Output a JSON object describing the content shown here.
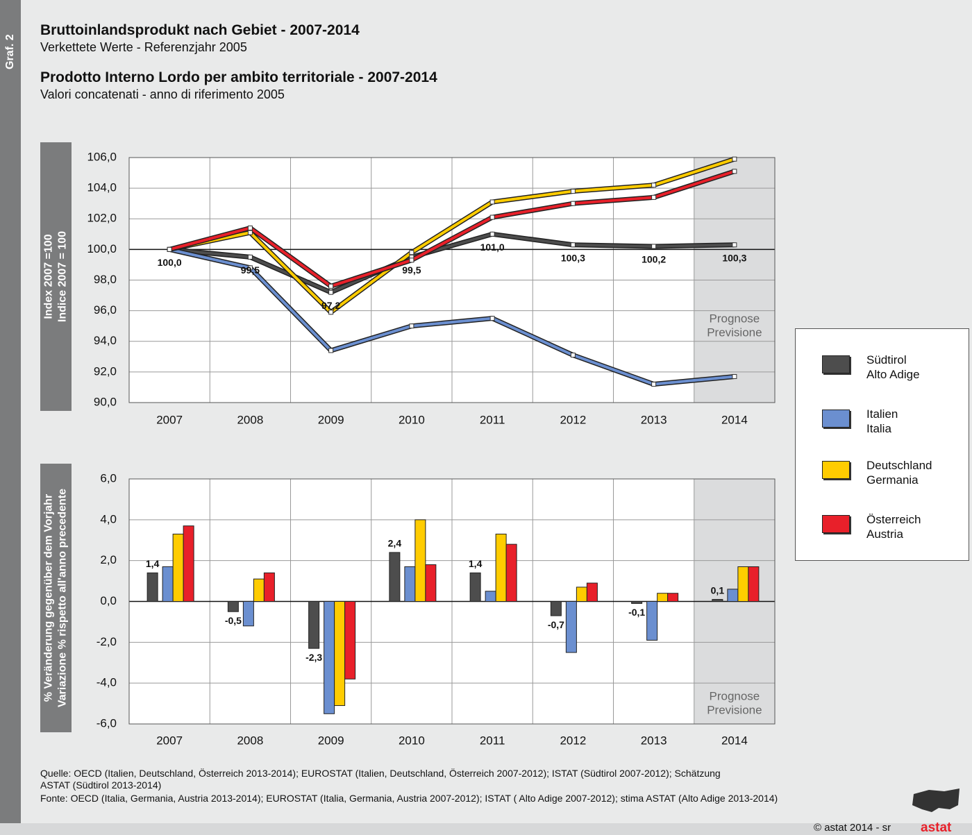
{
  "header": {
    "graf": "Graf. 2",
    "title_de": "Bruttoinlandsprodukt nach Gebiet - 2007-2014",
    "subtitle_de": "Verkettete Werte - Referenzjahr 2005",
    "title_it": "Prodotto Interno Lordo per ambito territoriale - 2007-2014",
    "subtitle_it": "Valori concatenati - anno di riferimento 2005"
  },
  "chart_data": [
    {
      "type": "line",
      "y_title": [
        "Index 2007 =100",
        "Indice 2007 = 100"
      ],
      "categories": [
        "2007",
        "2008",
        "2009",
        "2010",
        "2011",
        "2012",
        "2013",
        "2014"
      ],
      "forecast": {
        "category": "2014",
        "label": [
          "Prognose",
          "Previsione"
        ]
      },
      "ylim": [
        90,
        106
      ],
      "yticks": [
        {
          "value": 90,
          "label": "90,0"
        },
        {
          "value": 92,
          "label": "92,0"
        },
        {
          "value": 94,
          "label": "94,0"
        },
        {
          "value": 96,
          "label": "96,0"
        },
        {
          "value": 98,
          "label": "98,0"
        },
        {
          "value": 100,
          "label": "100,0"
        },
        {
          "value": 102,
          "label": "102,0"
        },
        {
          "value": 104,
          "label": "104,0"
        },
        {
          "value": 106,
          "label": "106,0"
        }
      ],
      "reference_line": 100,
      "grid": true,
      "series": [
        {
          "name": "Südtirol\nAlto Adige",
          "color": "#4d4d4d",
          "values": [
            100.0,
            99.5,
            97.2,
            99.5,
            101.0,
            100.3,
            100.2,
            100.3
          ],
          "value_labels": [
            "100,0",
            "99,5",
            "97,2",
            "99,5",
            "101,0",
            "100,3",
            "100,2",
            "100,3"
          ]
        },
        {
          "name": "Italien\nItalia",
          "color": "#6b8fd0",
          "values": [
            100.0,
            98.8,
            93.4,
            95.0,
            95.5,
            93.1,
            91.2,
            91.7
          ]
        },
        {
          "name": "Deutschland\nGermania",
          "color": "#ffcc00",
          "values": [
            100.0,
            101.1,
            95.9,
            99.8,
            103.1,
            103.8,
            104.2,
            105.9
          ]
        },
        {
          "name": "Österreich\nAustria",
          "color": "#e8202a",
          "values": [
            100.0,
            101.4,
            97.6,
            99.3,
            102.1,
            103.0,
            103.4,
            105.1
          ]
        }
      ]
    },
    {
      "type": "bar",
      "y_title": [
        "% Veränderung gegenüber dem Vorjahr",
        "Variazione % rispetto all'anno precedente"
      ],
      "categories": [
        "2007",
        "2008",
        "2009",
        "2010",
        "2011",
        "2012",
        "2013",
        "2014"
      ],
      "forecast": {
        "category": "2014",
        "label": [
          "Prognose",
          "Previsione"
        ]
      },
      "ylim": [
        -6,
        6
      ],
      "yticks": [
        {
          "value": -6,
          "label": "-6,0"
        },
        {
          "value": -4,
          "label": "-4,0"
        },
        {
          "value": -2,
          "label": "-2,0"
        },
        {
          "value": 0,
          "label": "0,0"
        },
        {
          "value": 2,
          "label": "2,0"
        },
        {
          "value": 4,
          "label": "4,0"
        },
        {
          "value": 6,
          "label": "6,0"
        }
      ],
      "reference_line": 0,
      "grid": true,
      "series": [
        {
          "name": "Südtirol\nAlto Adige",
          "color": "#4d4d4d",
          "values": [
            1.4,
            -0.5,
            -2.3,
            2.4,
            1.4,
            -0.7,
            -0.1,
            0.1
          ],
          "value_labels": [
            "1,4",
            "-0,5",
            "-2,3",
            "2,4",
            "1,4",
            "-0,7",
            "-0,1",
            "0,1"
          ]
        },
        {
          "name": "Italien\nItalia",
          "color": "#6b8fd0",
          "values": [
            1.7,
            -1.2,
            -5.5,
            1.7,
            0.5,
            -2.5,
            -1.9,
            0.6
          ]
        },
        {
          "name": "Deutschland\nGermania",
          "color": "#ffcc00",
          "values": [
            3.3,
            1.1,
            -5.1,
            4.0,
            3.3,
            0.7,
            0.4,
            1.7
          ]
        },
        {
          "name": "Österreich\nAustria",
          "color": "#e8202a",
          "values": [
            3.7,
            1.4,
            -3.8,
            1.8,
            2.8,
            0.9,
            0.4,
            1.7
          ]
        }
      ]
    }
  ],
  "footer": {
    "source_lines": [
      "Quelle: OECD (Italien, Deutschland, Österreich 2013-2014); EUROSTAT (Italien, Deutschland, Österreich 2007-2012); ISTAT (Südtirol 2007-2012); Schätzung",
      "ASTAT (Südtirol 2013-2014)",
      "Fonte: OECD (Italia, Germania, Austria 2013-2014); EUROSTAT (Italia, Germania, Austria 2007-2012); ISTAT ( Alto Adige 2007-2012); stima ASTAT (Alto Adige 2013-2014)"
    ],
    "copyright": "© astat 2014 - sr",
    "logo": "astat"
  }
}
